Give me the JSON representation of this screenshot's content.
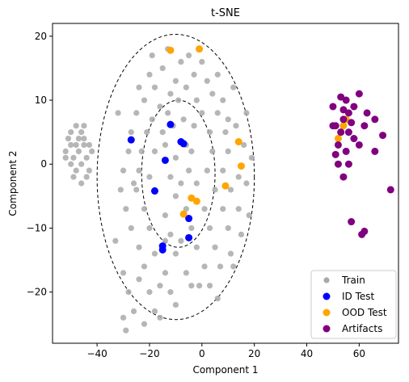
{
  "chart_data": {
    "type": "scatter",
    "title": "t-SNE",
    "xlabel": "Component 1",
    "ylabel": "Component 2",
    "xlim": [
      -57,
      75
    ],
    "ylim": [
      -28,
      22
    ],
    "xticks": [
      -40,
      -20,
      0,
      20,
      40,
      60
    ],
    "yticks": [
      -20,
      -10,
      0,
      10,
      20
    ],
    "grid": false,
    "legend_placement": "bottom-right",
    "ellipses": [
      {
        "cx": -10,
        "cy": -2.0,
        "rx": 30,
        "ry": 22.3
      },
      {
        "cx": -9,
        "cy": -1.5,
        "rx": 14,
        "ry": 11.5
      }
    ],
    "series": [
      {
        "name": "Train",
        "color": "#a9a9a9",
        "points": [
          [
            -50,
            5
          ],
          [
            -48,
            6
          ],
          [
            -46,
            5
          ],
          [
            -45,
            3
          ],
          [
            -47,
            2
          ],
          [
            -49,
            1
          ],
          [
            -50,
            3
          ],
          [
            -52,
            2
          ],
          [
            -51,
            4
          ],
          [
            -46,
            0
          ],
          [
            -44,
            1
          ],
          [
            -43,
            3
          ],
          [
            -48,
            -1
          ],
          [
            -47,
            4
          ],
          [
            -45,
            6
          ],
          [
            -44,
            -2
          ],
          [
            -49,
            -2
          ],
          [
            -52,
            1
          ],
          [
            -46,
            -3
          ],
          [
            -42,
            2
          ],
          [
            -48,
            3
          ],
          [
            -45,
            4
          ],
          [
            -50,
            0
          ],
          [
            -43,
            -1
          ],
          [
            -13,
            18
          ],
          [
            -8,
            16
          ],
          [
            -5,
            17
          ],
          [
            -15,
            15
          ],
          [
            -20,
            14
          ],
          [
            -10,
            13
          ],
          [
            -3,
            14
          ],
          [
            -18,
            12
          ],
          [
            -12,
            11
          ],
          [
            -6,
            12
          ],
          [
            2,
            13
          ],
          [
            -22,
            10
          ],
          [
            -16,
            9
          ],
          [
            -9,
            10
          ],
          [
            -2,
            10
          ],
          [
            4,
            11
          ],
          [
            8,
            10
          ],
          [
            -25,
            8
          ],
          [
            -19,
            7
          ],
          [
            -13,
            8
          ],
          [
            -7,
            7
          ],
          [
            0,
            8
          ],
          [
            6,
            8
          ],
          [
            10,
            7
          ],
          [
            -27,
            5
          ],
          [
            -21,
            5
          ],
          [
            -15,
            5
          ],
          [
            -3,
            6
          ],
          [
            3,
            5
          ],
          [
            9,
            5
          ],
          [
            13,
            6
          ],
          [
            -28,
            2
          ],
          [
            -23,
            2
          ],
          [
            -18,
            2
          ],
          [
            -10,
            1
          ],
          [
            -4,
            2
          ],
          [
            4,
            2
          ],
          [
            10,
            2
          ],
          [
            16,
            3
          ],
          [
            -30,
            -1
          ],
          [
            -24,
            -1
          ],
          [
            -12,
            -2
          ],
          [
            -5,
            -1
          ],
          [
            2,
            -1
          ],
          [
            8,
            -1
          ],
          [
            14,
            -2
          ],
          [
            -31,
            -4
          ],
          [
            -25,
            -4
          ],
          [
            -18,
            -4
          ],
          [
            -10,
            -5
          ],
          [
            -2,
            -3
          ],
          [
            5,
            -4
          ],
          [
            11,
            -4
          ],
          [
            17,
            -3
          ],
          [
            -29,
            -7
          ],
          [
            -22,
            -7
          ],
          [
            -14,
            -8
          ],
          [
            -6,
            -7
          ],
          [
            1,
            -7
          ],
          [
            8,
            -7
          ],
          [
            14,
            -7
          ],
          [
            -27,
            -10
          ],
          [
            -20,
            -10
          ],
          [
            -12,
            -11
          ],
          [
            -4,
            -10
          ],
          [
            3,
            -10
          ],
          [
            10,
            -10
          ],
          [
            15,
            -11
          ],
          [
            -24,
            -13
          ],
          [
            -18,
            -14
          ],
          [
            -10,
            -14
          ],
          [
            -2,
            -13
          ],
          [
            5,
            -13
          ],
          [
            11,
            -14
          ],
          [
            -30,
            -17
          ],
          [
            -22,
            -16
          ],
          [
            -14,
            -17
          ],
          [
            -6,
            -17
          ],
          [
            1,
            -16
          ],
          [
            7,
            -16
          ],
          [
            -28,
            -20
          ],
          [
            -20,
            -20
          ],
          [
            -12,
            -20
          ],
          [
            -4,
            -19
          ],
          [
            3,
            -19
          ],
          [
            -26,
            -23
          ],
          [
            -18,
            -23
          ],
          [
            -10,
            -22
          ],
          [
            -30,
            -24
          ],
          [
            -22,
            -25
          ],
          [
            -29,
            -26
          ],
          [
            -24,
            -18
          ],
          [
            -16,
            -24
          ],
          [
            -8,
            -12
          ],
          [
            -19,
            17
          ],
          [
            0,
            16
          ],
          [
            12,
            12
          ],
          [
            -24,
            12
          ],
          [
            17,
            8
          ],
          [
            18,
            -8
          ],
          [
            -14,
            -12
          ],
          [
            -6,
            3
          ],
          [
            -11,
            6
          ],
          [
            -20,
            -2
          ],
          [
            -1,
            -19
          ],
          [
            6,
            -21
          ],
          [
            -33,
            -12
          ],
          [
            -32,
            8
          ],
          [
            19,
            1
          ],
          [
            -16,
            -19
          ],
          [
            -26,
            -3
          ],
          [
            -8,
            -3
          ],
          [
            6,
            14
          ],
          [
            -14,
            3
          ],
          [
            12,
            -16
          ]
        ]
      },
      {
        "name": "ID Test",
        "color": "#0000ff",
        "points": [
          [
            -12,
            6.2
          ],
          [
            -27,
            3.8
          ],
          [
            -8,
            3.5
          ],
          [
            -7,
            3.2
          ],
          [
            -14,
            0.6
          ],
          [
            -18,
            -4.2
          ],
          [
            -5,
            -8.5
          ],
          [
            -15,
            -12.8
          ],
          [
            -15,
            -13.4
          ],
          [
            -5,
            -11.5
          ]
        ]
      },
      {
        "name": "OOD Test",
        "color": "#ffa500",
        "points": [
          [
            -12,
            17.8
          ],
          [
            -1,
            18
          ],
          [
            14,
            3.5
          ],
          [
            15,
            -0.3
          ],
          [
            9,
            -3.4
          ],
          [
            -4,
            -5.3
          ],
          [
            -2,
            -5.8
          ],
          [
            -7,
            -7.8
          ],
          [
            53,
            5
          ],
          [
            55,
            7
          ],
          [
            52,
            4
          ],
          [
            54,
            6
          ]
        ]
      },
      {
        "name": "Artifacts",
        "color": "#800080",
        "points": [
          [
            50,
            9
          ],
          [
            53,
            10.5
          ],
          [
            55,
            10
          ],
          [
            58,
            9
          ],
          [
            60,
            11
          ],
          [
            63,
            8
          ],
          [
            56,
            8
          ],
          [
            54,
            7
          ],
          [
            51,
            6
          ],
          [
            53,
            5
          ],
          [
            56,
            5
          ],
          [
            58,
            4
          ],
          [
            52,
            3
          ],
          [
            55,
            2
          ],
          [
            52,
            0
          ],
          [
            56,
            0
          ],
          [
            54,
            -2
          ],
          [
            62,
            6
          ],
          [
            66,
            7
          ],
          [
            69,
            4.5
          ],
          [
            66,
            2
          ],
          [
            72,
            -4
          ],
          [
            57,
            -9
          ],
          [
            61,
            -11
          ],
          [
            62,
            -10.5
          ],
          [
            50,
            6
          ],
          [
            54,
            8.5
          ],
          [
            57,
            6.5
          ],
          [
            51,
            1.5
          ],
          [
            60,
            3
          ]
        ]
      }
    ]
  }
}
